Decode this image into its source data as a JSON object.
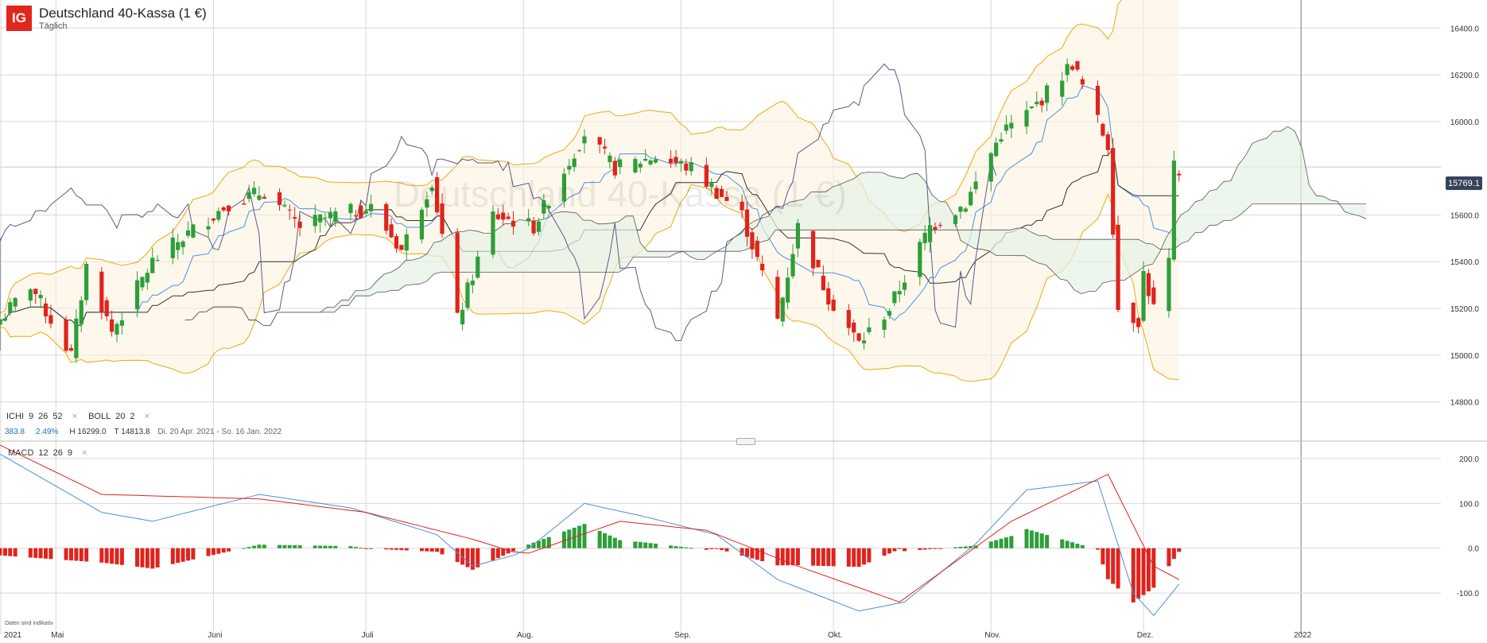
{
  "header": {
    "logo": "IG",
    "title": "Deutschland 40-Kassa (1 €)",
    "subtitle": "Täglich",
    "watermark": "Deutschland 40-Kassa (1 €)"
  },
  "indicators": {
    "ichi": {
      "name": "ICHI",
      "p1": "9",
      "p2": "26",
      "p3": "52"
    },
    "boll": {
      "name": "BOLL",
      "p1": "20",
      "p2": "2"
    },
    "macd": {
      "name": "MACD",
      "p1": "12",
      "p2": "26",
      "p3": "9"
    },
    "close_icon": "×"
  },
  "stats": {
    "change": "383.8",
    "change_pct": "2.49%",
    "high": "H 16299.0",
    "low": "T 14813.8",
    "range": "Di. 20 Apr. 2021 - So. 16 Jan. 2022"
  },
  "current_price": "15769.1",
  "disclaimer": "Daten sind indikativ",
  "colors": {
    "up": "#2e9e3a",
    "down": "#e0231c",
    "boll": "#f2a60c",
    "tenkan": "#4a90e2",
    "kijun": "#333333",
    "chikou": "#5a5a8c",
    "macd_line": "#4a90e2",
    "signal_line": "#e0231c",
    "price_tag": "#34445a"
  },
  "chart_data": [
    {
      "type": "candlestick",
      "title": "Deutschland 40-Kassa (1 €)",
      "timeframe": "Täglich",
      "x_tick_labels": [
        "2021",
        "Mai",
        "Juni",
        "Juli",
        "Aug.",
        "Sep.",
        "Okt.",
        "Nov.",
        "Dez.",
        "2022"
      ],
      "y_tick_labels": [
        "16400.0",
        "16200.0",
        "16000.0",
        "15600.0",
        "15400.0",
        "15200.0",
        "15000.0",
        "14800.0"
      ],
      "ylim": [
        14700,
        16520
      ],
      "grid": true,
      "anchors": [
        [
          "2021-04-20",
          15150
        ],
        [
          "2021-04-26",
          15300
        ],
        [
          "2021-05-04",
          15000
        ],
        [
          "2021-05-07",
          15380
        ],
        [
          "2021-05-12",
          15100
        ],
        [
          "2021-05-20",
          15400
        ],
        [
          "2021-05-27",
          15520
        ],
        [
          "2021-06-04",
          15650
        ],
        [
          "2021-06-11",
          15700
        ],
        [
          "2021-06-18",
          15550
        ],
        [
          "2021-06-25",
          15600
        ],
        [
          "2021-07-02",
          15630
        ],
        [
          "2021-07-08",
          15450
        ],
        [
          "2021-07-14",
          15750
        ],
        [
          "2021-07-19",
          15150
        ],
        [
          "2021-07-26",
          15600
        ],
        [
          "2021-08-03",
          15550
        ],
        [
          "2021-08-13",
          15950
        ],
        [
          "2021-08-19",
          15800
        ],
        [
          "2021-08-27",
          15850
        ],
        [
          "2021-09-03",
          15800
        ],
        [
          "2021-09-08",
          15700
        ],
        [
          "2021-09-13",
          15600
        ],
        [
          "2021-09-20",
          15150
        ],
        [
          "2021-09-24",
          15550
        ],
        [
          "2021-09-30",
          15250
        ],
        [
          "2021-10-06",
          15050
        ],
        [
          "2021-10-12",
          15200
        ],
        [
          "2021-10-20",
          15550
        ],
        [
          "2021-10-27",
          15650
        ],
        [
          "2021-11-03",
          15950
        ],
        [
          "2021-11-09",
          16050
        ],
        [
          "2021-11-17",
          16250
        ],
        [
          "2021-11-19",
          16150
        ],
        [
          "2021-11-24",
          15900
        ],
        [
          "2021-11-26",
          15200
        ],
        [
          "2021-11-30",
          15150
        ],
        [
          "2021-12-01",
          15350
        ],
        [
          "2021-12-03",
          15200
        ],
        [
          "2021-12-06",
          15400
        ],
        [
          "2021-12-07",
          15800
        ],
        [
          "2021-12-08",
          15769.1
        ]
      ],
      "series": [
        {
          "name": "Bollinger Bands (20, 2)"
        },
        {
          "name": "Ichimoku (9, 26, 52)"
        }
      ]
    },
    {
      "type": "bar",
      "title": "MACD 12 26 9",
      "y_tick_labels": [
        "200.0",
        "100.0",
        "0.0",
        "-100.0"
      ],
      "ylim": [
        -160,
        230
      ],
      "macd_anchors": [
        [
          "2021-04-20",
          210
        ],
        [
          "2021-05-10",
          80
        ],
        [
          "2021-05-20",
          60
        ],
        [
          "2021-06-10",
          120
        ],
        [
          "2021-06-28",
          90
        ],
        [
          "2021-07-15",
          30
        ],
        [
          "2021-07-22",
          -40
        ],
        [
          "2021-08-01",
          -10
        ],
        [
          "2021-08-13",
          100
        ],
        [
          "2021-08-25",
          70
        ],
        [
          "2021-09-08",
          30
        ],
        [
          "2021-09-20",
          -70
        ],
        [
          "2021-10-06",
          -140
        ],
        [
          "2021-10-15",
          -120
        ],
        [
          "2021-10-29",
          10
        ],
        [
          "2021-11-08",
          130
        ],
        [
          "2021-11-22",
          150
        ],
        [
          "2021-11-29",
          -100
        ],
        [
          "2021-12-03",
          -150
        ],
        [
          "2021-12-08",
          -80
        ]
      ],
      "signal_anchors": [
        [
          "2021-04-20",
          230
        ],
        [
          "2021-05-10",
          120
        ],
        [
          "2021-06-10",
          110
        ],
        [
          "2021-07-01",
          80
        ],
        [
          "2021-07-22",
          20
        ],
        [
          "2021-08-01",
          -15
        ],
        [
          "2021-08-20",
          60
        ],
        [
          "2021-09-06",
          40
        ],
        [
          "2021-09-24",
          -40
        ],
        [
          "2021-10-14",
          -120
        ],
        [
          "2021-11-05",
          60
        ],
        [
          "2021-11-24",
          165
        ],
        [
          "2021-12-03",
          -40
        ],
        [
          "2021-12-08",
          -70
        ]
      ]
    }
  ]
}
